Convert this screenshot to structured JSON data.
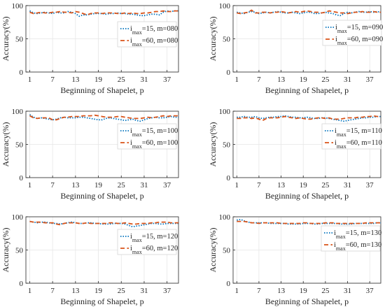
{
  "chart_data": [
    {
      "type": "line",
      "xlabel": "Beginning of Shapelet, p",
      "ylabel": "Accuracy(%)",
      "ylim": [
        0,
        100
      ],
      "xlim": [
        0,
        40
      ],
      "xticks": [
        1,
        7,
        13,
        19,
        25,
        31,
        37
      ],
      "yticks": [
        0,
        50,
        100
      ],
      "grid": true,
      "legend_position": "right",
      "x": [
        1,
        2,
        3,
        4,
        5,
        6,
        7,
        8,
        9,
        10,
        11,
        12,
        13,
        14,
        15,
        16,
        17,
        18,
        19,
        20,
        21,
        22,
        23,
        24,
        25,
        26,
        27,
        28,
        29,
        30,
        31,
        32,
        33,
        34,
        35,
        36,
        37,
        38,
        39,
        40
      ],
      "series": [
        {
          "name": "i_max=15, m=080",
          "style": "dotted",
          "color": "#0072BD",
          "values": [
            92,
            89,
            88,
            89,
            90,
            89,
            88,
            90,
            89,
            89,
            91,
            90,
            88,
            84,
            86,
            86,
            87,
            88,
            88,
            88,
            87,
            88,
            88,
            89,
            88,
            88,
            87,
            87,
            86,
            85,
            85,
            86,
            87,
            87,
            86,
            90,
            92,
            91,
            92,
            92
          ]
        },
        {
          "name": "i_max=60, m=080",
          "style": "dashed",
          "color": "#D95319",
          "values": [
            90,
            88,
            89,
            90,
            89,
            89,
            90,
            90,
            91,
            90,
            90,
            89,
            91,
            90,
            88,
            86,
            88,
            89,
            89,
            88,
            89,
            89,
            89,
            88,
            88,
            89,
            88,
            89,
            88,
            88,
            89,
            89,
            90,
            91,
            91,
            92,
            91,
            91,
            92,
            92
          ]
        }
      ]
    },
    {
      "type": "line",
      "xlabel": "Beginning of Shapelet, p",
      "ylabel": "Accuracy(%)",
      "ylim": [
        0,
        100
      ],
      "xlim": [
        0,
        40
      ],
      "xticks": [
        1,
        7,
        13,
        19,
        25,
        31,
        37
      ],
      "yticks": [
        0,
        50,
        100
      ],
      "grid": true,
      "legend_position": "right",
      "x": [
        1,
        2,
        3,
        4,
        5,
        6,
        7,
        8,
        9,
        10,
        11,
        12,
        13,
        14,
        15,
        16,
        17,
        18,
        19,
        20,
        21,
        22,
        23,
        24,
        25,
        26,
        27,
        28,
        29,
        30,
        31,
        32,
        33,
        34,
        35,
        36,
        37,
        38,
        39,
        40
      ],
      "series": [
        {
          "name": "i_max=15, m=090",
          "style": "dotted",
          "color": "#0072BD",
          "values": [
            90,
            89,
            88,
            90,
            91,
            90,
            88,
            89,
            90,
            89,
            90,
            91,
            90,
            89,
            89,
            90,
            89,
            88,
            89,
            90,
            90,
            88,
            88,
            89,
            90,
            89,
            88,
            86,
            85,
            88,
            90,
            89,
            90,
            91,
            90,
            90,
            91,
            90,
            91,
            90
          ]
        },
        {
          "name": "i_max=60, m=090",
          "style": "dashed",
          "color": "#D95319",
          "values": [
            89,
            88,
            89,
            90,
            93,
            89,
            89,
            90,
            90,
            89,
            90,
            90,
            91,
            90,
            89,
            90,
            91,
            90,
            91,
            92,
            91,
            90,
            90,
            89,
            90,
            92,
            91,
            90,
            89,
            89,
            88,
            89,
            90,
            90,
            91,
            90,
            90,
            91,
            90,
            90
          ]
        }
      ]
    },
    {
      "type": "line",
      "xlabel": "Beginning of Shapelet, p",
      "ylabel": "Accuracy(%)",
      "ylim": [
        0,
        100
      ],
      "xlim": [
        0,
        40
      ],
      "xticks": [
        1,
        7,
        13,
        19,
        25,
        31,
        37
      ],
      "yticks": [
        0,
        50,
        100
      ],
      "grid": true,
      "legend_position": "right",
      "x": [
        1,
        2,
        3,
        4,
        5,
        6,
        7,
        8,
        9,
        10,
        11,
        12,
        13,
        14,
        15,
        16,
        17,
        18,
        19,
        20,
        21,
        22,
        23,
        24,
        25,
        26,
        27,
        28,
        29,
        30,
        31,
        32,
        33,
        34,
        35,
        36,
        37,
        38,
        39,
        40
      ],
      "series": [
        {
          "name": "i_max=15, m=100",
          "style": "dotted",
          "color": "#0072BD",
          "values": [
            95,
            91,
            89,
            90,
            89,
            88,
            87,
            88,
            90,
            91,
            90,
            90,
            90,
            91,
            91,
            90,
            89,
            88,
            87,
            87,
            89,
            90,
            89,
            88,
            87,
            86,
            87,
            88,
            86,
            85,
            87,
            89,
            90,
            91,
            90,
            90,
            91,
            92,
            91,
            91
          ]
        },
        {
          "name": "i_max=60, m=100",
          "style": "dashed",
          "color": "#D95319",
          "values": [
            93,
            90,
            89,
            90,
            90,
            90,
            87,
            87,
            89,
            91,
            91,
            92,
            92,
            92,
            93,
            93,
            93,
            94,
            93,
            92,
            91,
            91,
            91,
            92,
            92,
            91,
            90,
            89,
            89,
            89,
            90,
            91,
            90,
            91,
            92,
            93,
            92,
            93,
            93,
            93
          ]
        }
      ]
    },
    {
      "type": "line",
      "xlabel": "Beginning of Shapelet, p",
      "ylabel": "Accuracy(%)",
      "ylim": [
        0,
        100
      ],
      "xlim": [
        0,
        40
      ],
      "xticks": [
        1,
        7,
        13,
        19,
        25,
        31,
        37
      ],
      "yticks": [
        0,
        50,
        100
      ],
      "grid": true,
      "legend_position": "right",
      "x": [
        1,
        2,
        3,
        4,
        5,
        6,
        7,
        8,
        9,
        10,
        11,
        12,
        13,
        14,
        15,
        16,
        17,
        18,
        19,
        20,
        21,
        22,
        23,
        24,
        25,
        26,
        27,
        28,
        29,
        30,
        31,
        32,
        33,
        34,
        35,
        36,
        37,
        38,
        39,
        40
      ],
      "series": [
        {
          "name": "i_max=15, m=110",
          "style": "dotted",
          "color": "#0072BD",
          "values": [
            91,
            91,
            92,
            91,
            91,
            92,
            90,
            89,
            90,
            91,
            91,
            92,
            92,
            93,
            92,
            91,
            91,
            90,
            90,
            91,
            90,
            89,
            89,
            90,
            90,
            89,
            88,
            87,
            86,
            85,
            86,
            87,
            88,
            89,
            90,
            90,
            91,
            91,
            92,
            92
          ]
        },
        {
          "name": "i_max=60, m=110",
          "style": "dashed",
          "color": "#D95319",
          "values": [
            89,
            89,
            90,
            90,
            89,
            90,
            88,
            86,
            89,
            90,
            90,
            90,
            91,
            92,
            91,
            90,
            89,
            90,
            89,
            88,
            88,
            89,
            90,
            90,
            89,
            90,
            88,
            88,
            88,
            89,
            90,
            90,
            90,
            91,
            91,
            92,
            92,
            93,
            92,
            92
          ]
        }
      ]
    },
    {
      "type": "line",
      "xlabel": "Beginning of Shapelet, p",
      "ylabel": "Accuracy(%)",
      "ylim": [
        0,
        100
      ],
      "xlim": [
        0,
        40
      ],
      "xticks": [
        1,
        7,
        13,
        19,
        25,
        31,
        37
      ],
      "yticks": [
        0,
        50,
        100
      ],
      "grid": true,
      "legend_position": "right",
      "x": [
        1,
        2,
        3,
        4,
        5,
        6,
        7,
        8,
        9,
        10,
        11,
        12,
        13,
        14,
        15,
        16,
        17,
        18,
        19,
        20,
        21,
        22,
        23,
        24,
        25,
        26,
        27,
        28,
        29,
        30,
        31,
        32,
        33,
        34,
        35,
        36,
        37,
        38,
        39,
        40
      ],
      "series": [
        {
          "name": "i_max=15, m=120",
          "style": "dotted",
          "color": "#0072BD",
          "values": [
            93,
            92,
            91,
            92,
            92,
            91,
            90,
            90,
            89,
            90,
            91,
            92,
            91,
            90,
            90,
            91,
            91,
            90,
            90,
            89,
            89,
            89,
            90,
            90,
            90,
            89,
            87,
            85,
            86,
            87,
            88,
            89,
            90,
            90,
            89,
            89,
            90,
            90,
            90,
            90
          ]
        },
        {
          "name": "i_max=60, m=120",
          "style": "dashed",
          "color": "#D95319",
          "values": [
            93,
            92,
            92,
            92,
            91,
            91,
            91,
            89,
            88,
            90,
            91,
            91,
            91,
            90,
            90,
            91,
            90,
            90,
            90,
            90,
            90,
            91,
            91,
            90,
            90,
            91,
            90,
            89,
            89,
            90,
            90,
            90,
            91,
            91,
            92,
            92,
            92,
            91,
            91,
            91
          ]
        }
      ]
    },
    {
      "type": "line",
      "xlabel": "Beginning of Shapelet, p",
      "ylabel": "Accuracy(%)",
      "ylim": [
        0,
        100
      ],
      "xlim": [
        0,
        40
      ],
      "xticks": [
        1,
        7,
        13,
        19,
        25,
        31,
        37
      ],
      "yticks": [
        0,
        50,
        100
      ],
      "grid": true,
      "legend_position": "right",
      "x": [
        1,
        2,
        3,
        4,
        5,
        6,
        7,
        8,
        9,
        10,
        11,
        12,
        13,
        14,
        15,
        16,
        17,
        18,
        19,
        20,
        21,
        22,
        23,
        24,
        25,
        26,
        27,
        28,
        29,
        30,
        31,
        32,
        33,
        34,
        35,
        36,
        37,
        38,
        39,
        40
      ],
      "series": [
        {
          "name": "i_max=15, m=130",
          "style": "dotted",
          "color": "#0072BD",
          "values": [
            95,
            96,
            94,
            92,
            91,
            91,
            91,
            91,
            91,
            90,
            90,
            90,
            90,
            90,
            89,
            89,
            89,
            89,
            90,
            90,
            90,
            89,
            89,
            90,
            90,
            90,
            90,
            90,
            89,
            89,
            89,
            89,
            90,
            90,
            90,
            90,
            90,
            90,
            91,
            91
          ]
        },
        {
          "name": "i_max=60, m=130",
          "style": "dashed",
          "color": "#D95319",
          "values": [
            93,
            93,
            93,
            92,
            91,
            91,
            90,
            91,
            91,
            91,
            91,
            91,
            90,
            90,
            90,
            90,
            90,
            90,
            91,
            91,
            90,
            90,
            90,
            90,
            91,
            91,
            91,
            90,
            90,
            90,
            90,
            90,
            90,
            90,
            90,
            91,
            91,
            91,
            91,
            91
          ]
        }
      ]
    }
  ]
}
